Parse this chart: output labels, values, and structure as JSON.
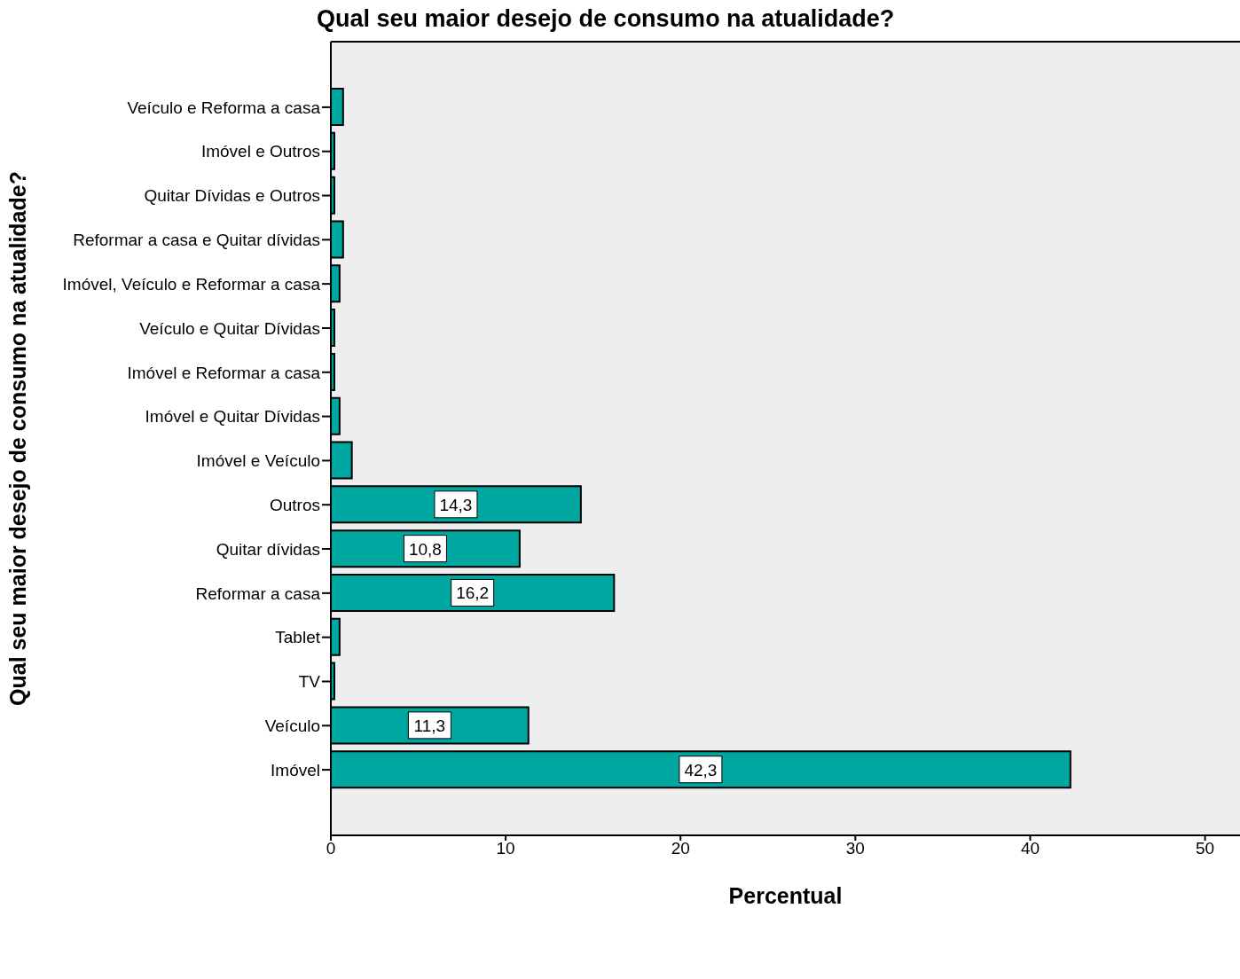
{
  "chart_data": {
    "type": "bar",
    "orientation": "horizontal",
    "title": "Qual seu maior desejo de consumo na atualidade?",
    "xlabel": "Percentual",
    "ylabel": "Qual seu maior desejo de consumo na atualidade?",
    "categories": [
      "Veículo e Reforma a casa",
      "Imóvel e Outros",
      "Quitar Dívidas e Outros",
      "Reformar a casa e Quitar dívidas",
      "Imóvel, Veículo e Reformar a casa",
      "Veículo e Quitar Dívidas",
      "Imóvel e Reformar a casa",
      "Imóvel e Quitar Dívidas",
      "Imóvel e Veículo",
      "Outros",
      "Quitar dívidas",
      "Reformar a casa",
      "Tablet",
      "TV",
      "Veículo",
      "Imóvel"
    ],
    "values": [
      0.7,
      0.2,
      0.2,
      0.7,
      0.5,
      0.2,
      0.2,
      0.5,
      1.2,
      14.3,
      10.8,
      16.2,
      0.5,
      0.2,
      11.3,
      42.3
    ],
    "value_labels": [
      null,
      null,
      null,
      null,
      null,
      null,
      null,
      null,
      null,
      "14,3",
      "10,8",
      "16,2",
      null,
      null,
      "11,3",
      "42,3"
    ],
    "color": "#00a6a0",
    "xlim": [
      0,
      52
    ],
    "xticks": [
      0,
      10,
      20,
      30,
      40,
      50
    ],
    "grid": false
  }
}
